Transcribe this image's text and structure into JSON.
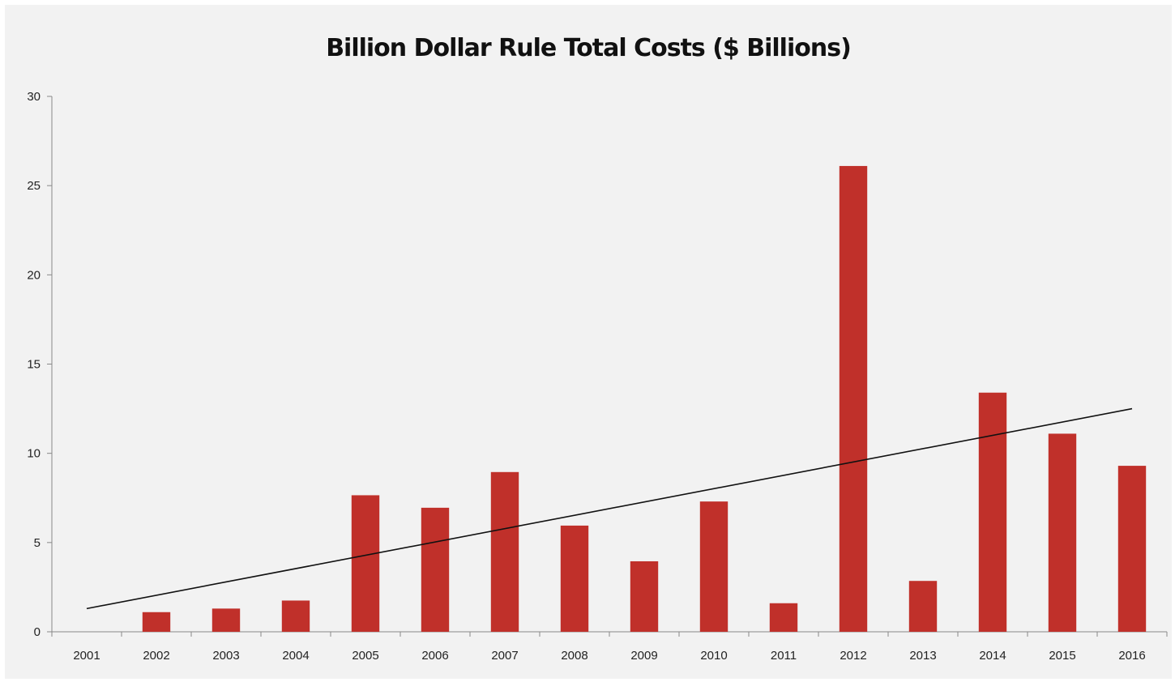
{
  "chart_data": {
    "type": "bar",
    "title": "Billion Dollar Rule Total Costs ($ Billions)",
    "xlabel": "",
    "ylabel": "",
    "categories": [
      "2001",
      "2002",
      "2003",
      "2004",
      "2005",
      "2006",
      "2007",
      "2008",
      "2009",
      "2010",
      "2011",
      "2012",
      "2013",
      "2014",
      "2015",
      "2016"
    ],
    "series": [
      {
        "values": [
          0,
          1.1,
          1.3,
          1.75,
          7.65,
          6.95,
          8.95,
          5.95,
          3.95,
          7.3,
          1.6,
          26.1,
          2.85,
          13.4,
          11.1,
          9.3
        ]
      }
    ],
    "trendline": {
      "type": "linear",
      "start": 1.3,
      "end": 12.5
    },
    "ylim": [
      0,
      30
    ],
    "yticks": [
      "0",
      "5",
      "10",
      "15",
      "20",
      "25",
      "30"
    ],
    "grid": false,
    "legend": "none",
    "colors": {
      "bar": "#c0302a",
      "trendline": "#111111",
      "axis": "#888888",
      "background": "#f2f2f2"
    }
  }
}
